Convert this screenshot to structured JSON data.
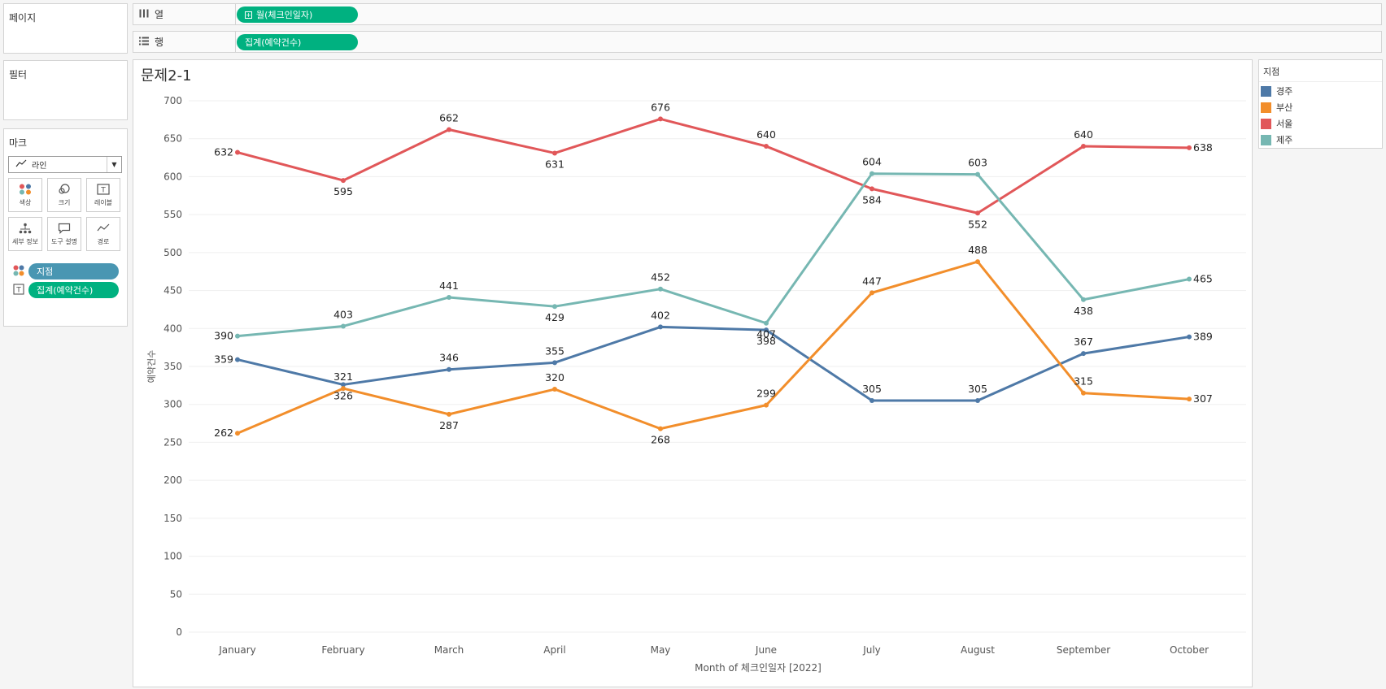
{
  "left": {
    "pages_title": "페이지",
    "filters_title": "필터",
    "marks_title": "마크",
    "mark_type": "라인",
    "mark_buttons": [
      {
        "label": "색상",
        "icon": "color-dots-icon"
      },
      {
        "label": "크기",
        "icon": "size-icon"
      },
      {
        "label": "레이블",
        "icon": "label-icon"
      },
      {
        "label": "세부 정보",
        "icon": "detail-icon"
      },
      {
        "label": "도구 설명",
        "icon": "tooltip-icon"
      },
      {
        "label": "경로",
        "icon": "path-icon"
      }
    ],
    "mark_pills": [
      {
        "label": "지점",
        "icon": "color-dots-icon"
      },
      {
        "label": "집계(예약건수)",
        "icon": "label-icon"
      }
    ]
  },
  "shelves": {
    "columns_label": "열",
    "columns_pill": "월(체크인일자)",
    "rows_label": "행",
    "rows_pill": "집계(예약건수)"
  },
  "legend": {
    "title": "지점",
    "items": [
      {
        "name": "경주",
        "color": "#4e79a7"
      },
      {
        "name": "부산",
        "color": "#f28e2b"
      },
      {
        "name": "서울",
        "color": "#e15759"
      },
      {
        "name": "제주",
        "color": "#76b7b2"
      }
    ]
  },
  "chart_data": {
    "type": "line",
    "title": "문제2-1",
    "xlabel": "Month of 체크인일자 [2022]",
    "ylabel": "예약건수",
    "ylim": [
      0,
      700
    ],
    "yticks": [
      0,
      50,
      100,
      150,
      200,
      250,
      300,
      350,
      400,
      450,
      500,
      550,
      600,
      650,
      700
    ],
    "categories": [
      "January",
      "February",
      "March",
      "April",
      "May",
      "June",
      "July",
      "August",
      "September",
      "October"
    ],
    "series": [
      {
        "name": "경주",
        "color": "#4e79a7",
        "values": [
          359,
          326,
          346,
          355,
          402,
          398,
          305,
          305,
          367,
          389
        ]
      },
      {
        "name": "부산",
        "color": "#f28e2b",
        "values": [
          262,
          321,
          287,
          320,
          268,
          299,
          447,
          488,
          315,
          307
        ]
      },
      {
        "name": "서울",
        "color": "#e15759",
        "values": [
          632,
          595,
          662,
          631,
          676,
          640,
          584,
          552,
          640,
          638
        ]
      },
      {
        "name": "제주",
        "color": "#76b7b2",
        "values": [
          390,
          403,
          441,
          429,
          452,
          407,
          604,
          603,
          438,
          465
        ]
      }
    ]
  }
}
